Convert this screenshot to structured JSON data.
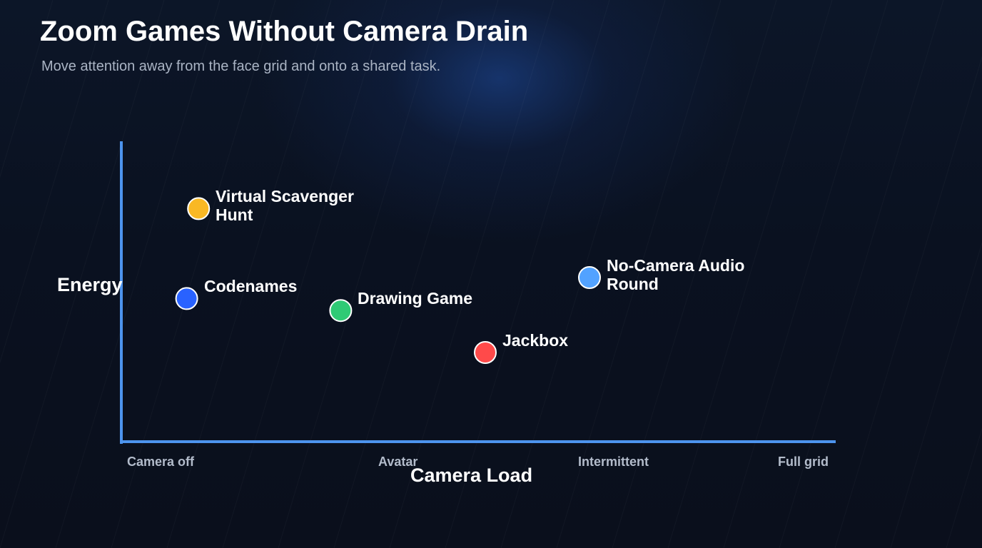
{
  "title": "Zoom Games Without Camera Drain",
  "subtitle": "Move attention away from the face grid and onto a shared task.",
  "chart_data": {
    "type": "scatter",
    "title": "Zoom Games Without Camera Drain",
    "subtitle": "Move attention away from the face grid and onto a shared task.",
    "xlabel": "Camera Load",
    "ylabel": "Energy",
    "x_ticks": [
      "Camera off",
      "Avatar",
      "Intermittent",
      "Full grid"
    ],
    "xlim": [
      0,
      3
    ],
    "ylim": [
      0,
      10
    ],
    "grid": false,
    "legend": "none",
    "points": [
      {
        "label": "Virtual Scavenger Hunt",
        "x": 0.32,
        "y": 7.8,
        "color": "#f9b824"
      },
      {
        "label": "Codenames",
        "x": 0.27,
        "y": 4.8,
        "color": "#2962ff"
      },
      {
        "label": "Drawing Game",
        "x": 0.92,
        "y": 4.4,
        "color": "#2fca75"
      },
      {
        "label": "Jackbox",
        "x": 1.53,
        "y": 3.0,
        "color": "#ff4a4a"
      },
      {
        "label": "No-Camera Audio Round",
        "x": 1.97,
        "y": 5.5,
        "color": "#52a2ff"
      }
    ]
  },
  "colors": {
    "axis": "#4d94ee",
    "background": "#0a1120",
    "point_outline": "#ffffff"
  }
}
